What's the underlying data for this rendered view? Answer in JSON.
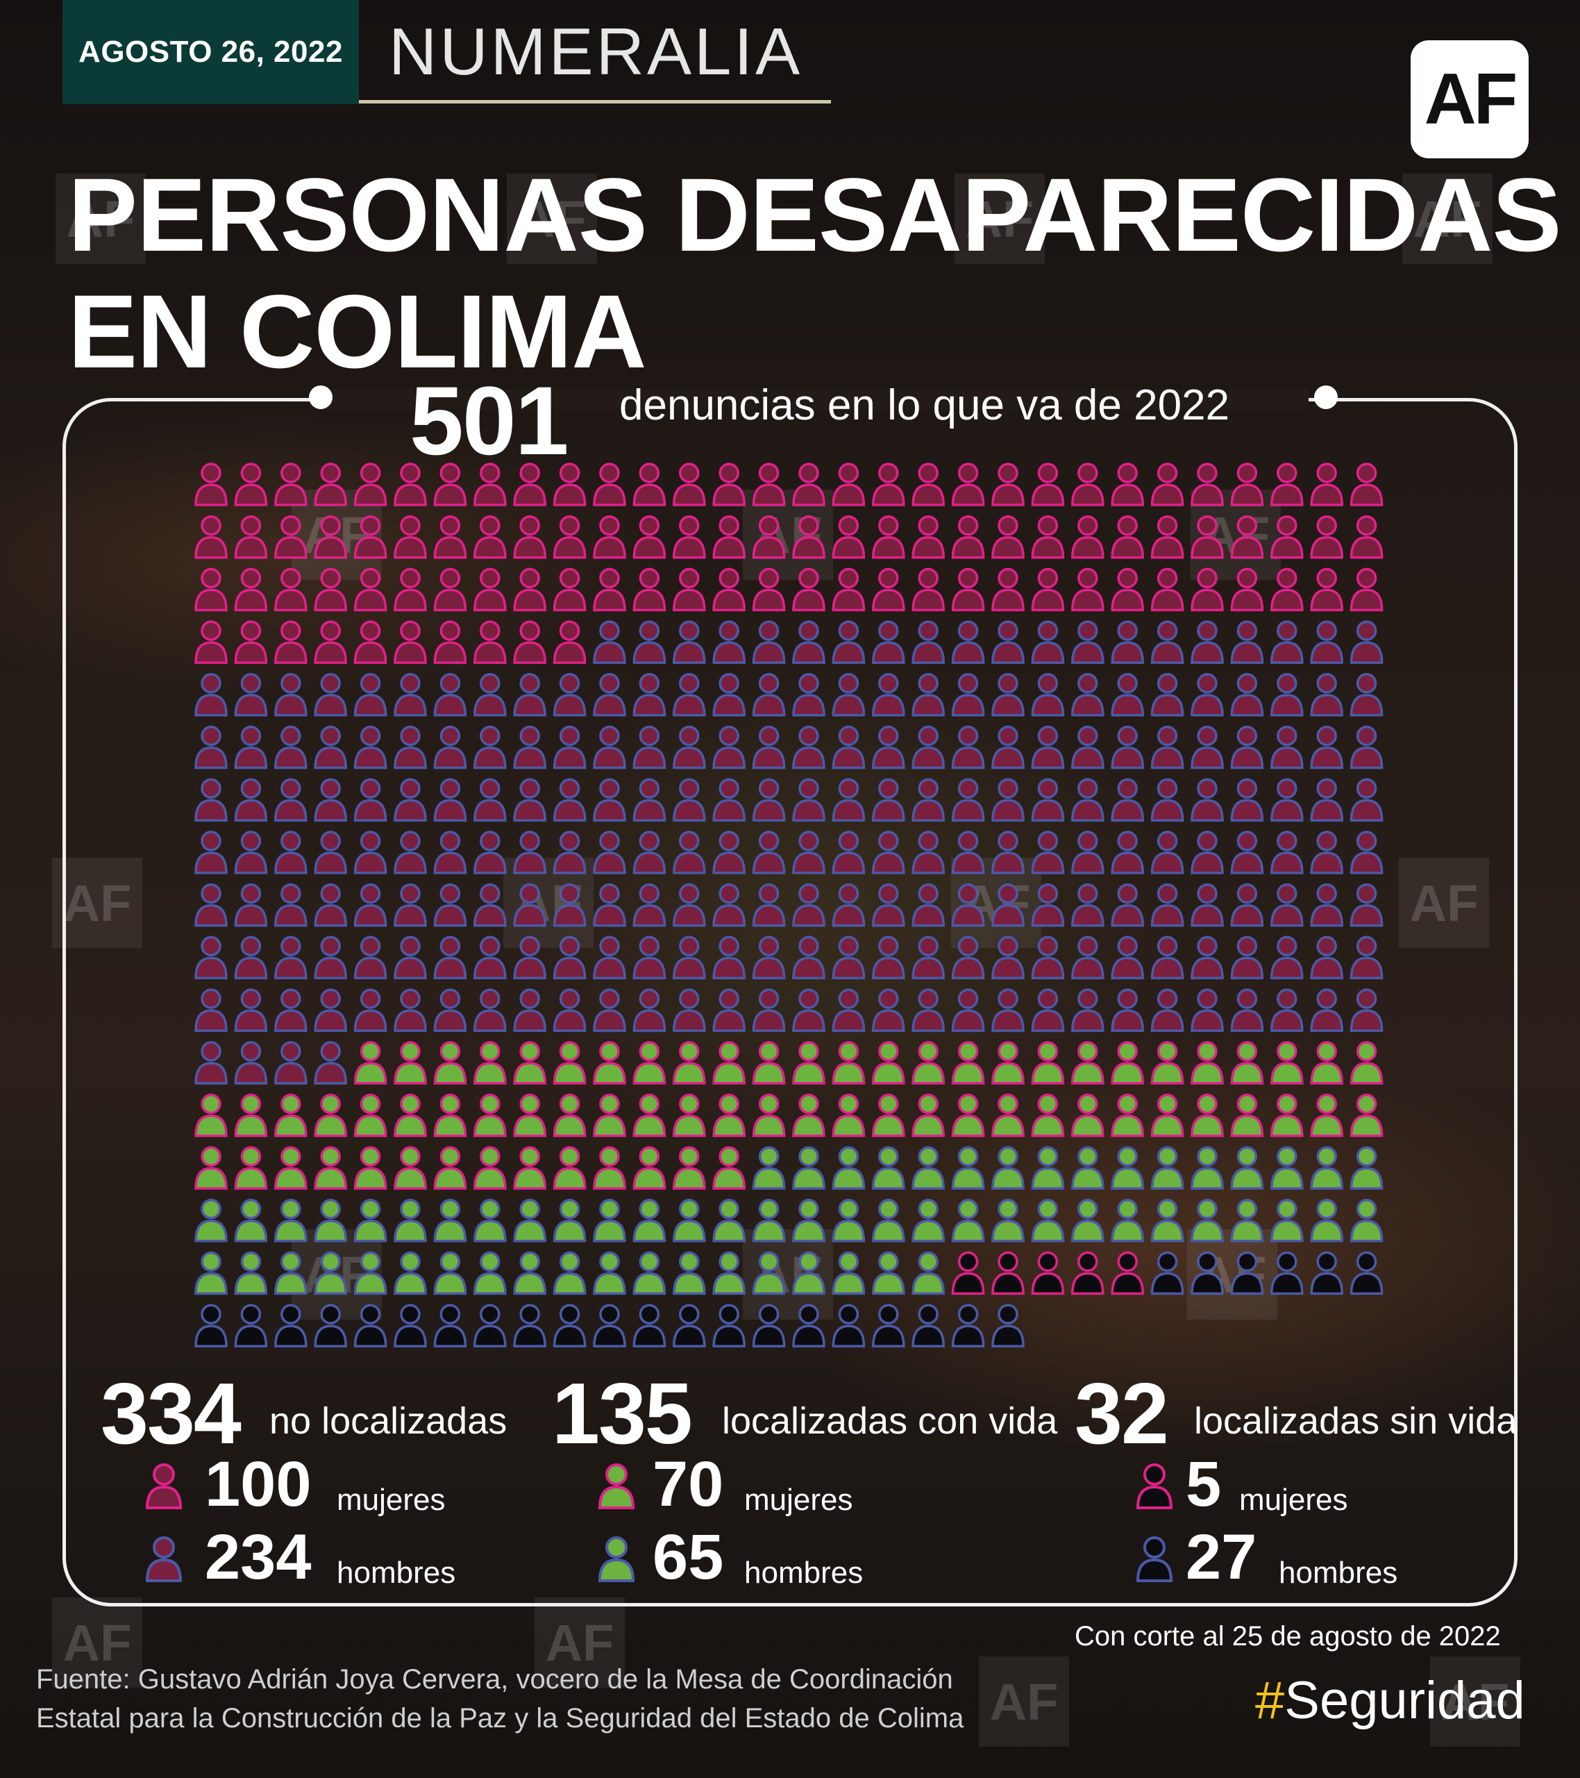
{
  "header": {
    "date": "AGOSTO 26, 2022",
    "section": "NUMERALIA",
    "logo": "AF",
    "title_line1": "PERSONAS DESAPARECIDAS",
    "title_line2": "EN COLIMA"
  },
  "total": {
    "value": "501",
    "label": "denuncias en lo que va de 2022"
  },
  "chart_data": {
    "type": "pictograph",
    "total": 501,
    "series": [
      {
        "name": "no localizadas",
        "total": 334,
        "groups": [
          {
            "name": "mujeres",
            "value": 100
          },
          {
            "name": "hombres",
            "value": 234
          }
        ]
      },
      {
        "name": "localizadas con vida",
        "total": 135,
        "groups": [
          {
            "name": "mujeres",
            "value": 70
          },
          {
            "name": "hombres",
            "value": 65
          }
        ]
      },
      {
        "name": "localizadas sin vida",
        "total": 32,
        "groups": [
          {
            "name": "mujeres",
            "value": 5
          },
          {
            "name": "hombres",
            "value": 27
          }
        ]
      }
    ]
  },
  "colors": {
    "no_localizadas_fill": "#7a1f3e",
    "localizadas_con_vida_fill": "#6cb33f",
    "localizadas_sin_vida_fill": "#0c0c10",
    "mujeres_outline": "#e0218a",
    "hombres_outline": "#4b5aa8",
    "accent": "#f3c21b"
  },
  "stats": [
    {
      "total": "334",
      "label": "no localizadas",
      "women": "100",
      "women_label": "mujeres",
      "men": "234",
      "men_label": "hombres"
    },
    {
      "total": "135",
      "label": "localizadas con vida",
      "women": "70",
      "women_label": "mujeres",
      "men": "65",
      "men_label": "hombres"
    },
    {
      "total": "32",
      "label": "localizadas sin vida",
      "women": "5",
      "women_label": "mujeres",
      "men": "27",
      "men_label": "hombres"
    }
  ],
  "footer": {
    "corte": "Con corte al 25 de agosto de 2022",
    "fuente_line1": "Fuente: Gustavo Adrián Joya Cervera, vocero de la Mesa de Coordinación",
    "fuente_line2": "Estatal para la Construcción de la Paz y la Seguridad del Estado de Colima",
    "hashtag_symbol": "#",
    "hashtag_text": "Seguridad"
  },
  "watermark": "AF",
  "icons": [
    "person-icon",
    "af-logo"
  ]
}
